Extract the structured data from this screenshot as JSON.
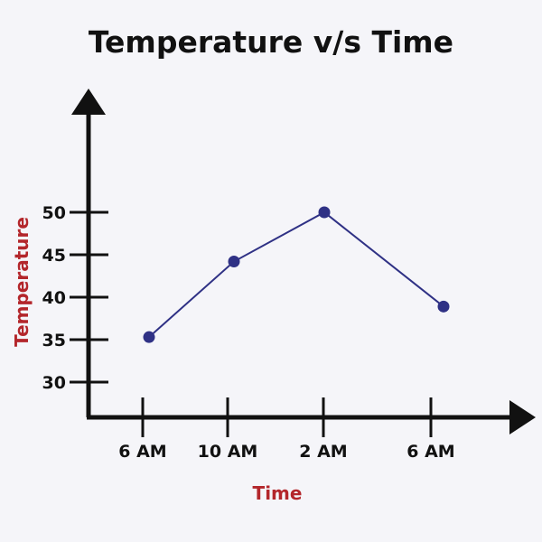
{
  "chart_data": {
    "type": "line",
    "title": "Temperature v/s Time",
    "xlabel": "Time",
    "ylabel": "Temperature",
    "categories": [
      "6 AM",
      "10 AM",
      "2 AM",
      "6 AM"
    ],
    "y_ticks": [
      30,
      35,
      40,
      45,
      50
    ],
    "series": [
      {
        "values": [
          35.3,
          44.2,
          50,
          38.9
        ]
      }
    ],
    "grid": false,
    "colors": {
      "line": "#2f3185",
      "axis": "#111111",
      "axis_label": "#b3262b",
      "background": "#f5f5f9"
    }
  }
}
